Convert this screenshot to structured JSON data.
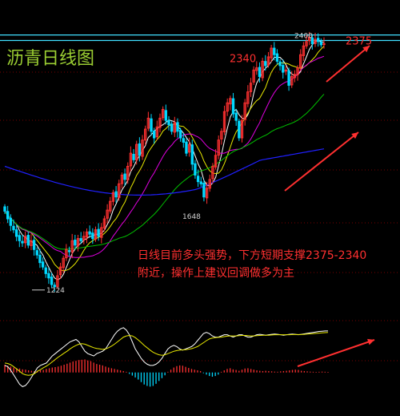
{
  "title": "沥青日线图",
  "commentary": {
    "line1": "日线目前多头强势，下方短期支撑2375-2340",
    "line2": "附近，操作上建议回调做多为主"
  },
  "colors": {
    "background": "#000000",
    "up_candle": "#ff3030",
    "down_candle": "#00d8ff",
    "ma5": "#ffffff",
    "ma10": "#e8e800",
    "ma20": "#e000e0",
    "ma60": "#00c000",
    "ma120": "#2020ff",
    "level_lines": "#40e0ff",
    "arrows": "#ff3030",
    "title": "#9acd32"
  },
  "chart_data": [
    {
      "type": "candlestick",
      "title": "沥青日线图",
      "ylim": [
        1150,
        2450
      ],
      "grid": false,
      "level_lines": [
        2400,
        2375
      ],
      "level_labels": [
        {
          "text": "2375",
          "value": 2375
        },
        {
          "text": "2340",
          "value": 2340
        }
      ],
      "annotations": [
        {
          "text": "2400",
          "value": 2400,
          "kind": "high"
        },
        {
          "text": "1648",
          "value": 1648,
          "kind": "low"
        },
        {
          "text": "1224",
          "value": 1224,
          "kind": "low"
        }
      ],
      "close": [
        1595,
        1560,
        1530,
        1510,
        1480,
        1460,
        1450,
        1480,
        1440,
        1460,
        1420,
        1395,
        1360,
        1340,
        1310,
        1290,
        1260,
        1250,
        1300,
        1340,
        1380,
        1420,
        1410,
        1460,
        1440,
        1470,
        1460,
        1480,
        1500,
        1490,
        1470,
        1510,
        1480,
        1520,
        1560,
        1600,
        1640,
        1680,
        1660,
        1720,
        1760,
        1740,
        1800,
        1860,
        1830,
        1900,
        1850,
        1920,
        1970,
        2020,
        1960,
        1930,
        1980,
        2020,
        2060,
        2010,
        1990,
        1960,
        2000,
        1960,
        1930,
        1910,
        1860,
        1900,
        1810,
        1760,
        1730,
        1720,
        1660,
        1700,
        1740,
        1800,
        1850,
        1920,
        1960,
        2050,
        2090,
        2110,
        2040,
        2010,
        1930,
        2010,
        2090,
        2140,
        2180,
        2240,
        2250,
        2210,
        2280,
        2260,
        2300,
        2340,
        2310,
        2280,
        2260,
        2230,
        2240,
        2170,
        2210,
        2220,
        2250,
        2310,
        2350,
        2370,
        2390,
        2360,
        2380,
        2370,
        2355,
        2360
      ]
    },
    {
      "type": "bar",
      "title": "",
      "grid": false,
      "values": [
        0.55,
        0.48,
        0.42,
        0.35,
        0.3,
        0.28,
        0.22,
        0.2,
        0.15,
        0.12,
        0.1,
        0.12,
        0.15,
        0.18,
        0.25,
        0.3,
        0.35,
        0.38,
        0.42,
        0.48,
        0.55,
        0.62,
        0.7,
        0.78,
        0.82,
        0.88,
        0.9,
        0.92,
        0.85,
        0.8,
        0.7,
        0.6,
        0.55,
        0.5,
        0.42,
        0.35,
        0.3,
        0.25,
        0.2,
        0.15,
        0.1,
        0.05,
        -0.1,
        -0.22,
        -0.35,
        -0.5,
        -0.68,
        -0.85,
        -0.95,
        -1.0,
        -0.95,
        -0.8,
        -0.6,
        -0.4,
        -0.2,
        0.05,
        0.2,
        0.35,
        0.45,
        0.5,
        0.48,
        0.4,
        0.32,
        0.25,
        0.2,
        0.15,
        0.1,
        -0.05,
        -0.15,
        -0.25,
        -0.3,
        -0.25,
        -0.15,
        0.05,
        0.15,
        0.25,
        0.3,
        0.22,
        0.18,
        0.12,
        0.2,
        0.28,
        0.3,
        0.25,
        0.2,
        0.15,
        0.12,
        0.1,
        0.12,
        0.1,
        0.08,
        0.06,
        0.05,
        0.08,
        0.1,
        0.12,
        0.15,
        0.18,
        0.2,
        0.18,
        0.12,
        0.1,
        0.08,
        0.06,
        0.05,
        0.04,
        0.05,
        0.06,
        0.05,
        0.04
      ],
      "dif": [
        0.3,
        0.25,
        0.1,
        -0.1,
        -0.3,
        -0.5,
        -0.6,
        -0.55,
        -0.4,
        -0.2,
        0.0,
        0.2,
        0.3,
        0.35,
        0.4,
        0.55,
        0.7,
        0.8,
        0.9,
        1.0,
        1.1,
        1.2,
        1.3,
        1.35,
        1.4,
        1.3,
        1.1,
        0.9,
        0.8,
        0.75,
        0.7,
        0.8,
        0.85,
        0.9,
        1.0,
        1.2,
        1.4,
        1.6,
        1.75,
        1.85,
        1.9,
        1.8,
        1.6,
        1.3,
        1.0,
        0.8,
        0.6,
        0.45,
        0.35,
        0.3,
        0.3,
        0.35,
        0.45,
        0.6,
        0.8,
        1.0,
        1.1,
        1.15,
        1.1,
        1.0,
        0.95,
        1.0,
        1.05,
        1.1,
        1.2,
        1.35,
        1.5,
        1.65,
        1.7,
        1.65,
        1.55,
        1.5,
        1.5,
        1.55,
        1.6,
        1.6,
        1.55,
        1.5,
        1.55,
        1.6,
        1.6,
        1.55,
        1.5,
        1.5,
        1.55,
        1.6,
        1.62,
        1.6,
        1.58,
        1.6,
        1.62,
        1.63,
        1.62,
        1.6,
        1.58,
        1.6,
        1.62,
        1.63,
        1.62,
        1.6,
        1.62,
        1.64,
        1.66,
        1.68,
        1.7,
        1.72,
        1.74,
        1.75,
        1.76,
        1.76
      ],
      "dea": [
        0.4,
        0.38,
        0.33,
        0.25,
        0.15,
        0.05,
        -0.05,
        -0.1,
        -0.12,
        -0.1,
        -0.05,
        0.05,
        0.12,
        0.2,
        0.27,
        0.35,
        0.45,
        0.55,
        0.65,
        0.73,
        0.82,
        0.9,
        1.0,
        1.08,
        1.15,
        1.2,
        1.22,
        1.2,
        1.15,
        1.1,
        1.05,
        1.02,
        1.0,
        0.98,
        1.0,
        1.05,
        1.12,
        1.2,
        1.3,
        1.4,
        1.5,
        1.55,
        1.57,
        1.55,
        1.48,
        1.38,
        1.27,
        1.15,
        1.05,
        0.95,
        0.86,
        0.8,
        0.75,
        0.73,
        0.75,
        0.8,
        0.85,
        0.9,
        0.93,
        0.95,
        0.96,
        0.97,
        0.99,
        1.01,
        1.05,
        1.1,
        1.18,
        1.26,
        1.35,
        1.42,
        1.46,
        1.48,
        1.49,
        1.5,
        1.52,
        1.54,
        1.55,
        1.55,
        1.55,
        1.56,
        1.57,
        1.57,
        1.56,
        1.55,
        1.55,
        1.56,
        1.57,
        1.58,
        1.58,
        1.58,
        1.59,
        1.6,
        1.6,
        1.6,
        1.6,
        1.6,
        1.6,
        1.61,
        1.61,
        1.61,
        1.61,
        1.62,
        1.63,
        1.64,
        1.65,
        1.66,
        1.67,
        1.68,
        1.69,
        1.7
      ],
      "ylim": [
        -1.2,
        2.2
      ]
    }
  ]
}
